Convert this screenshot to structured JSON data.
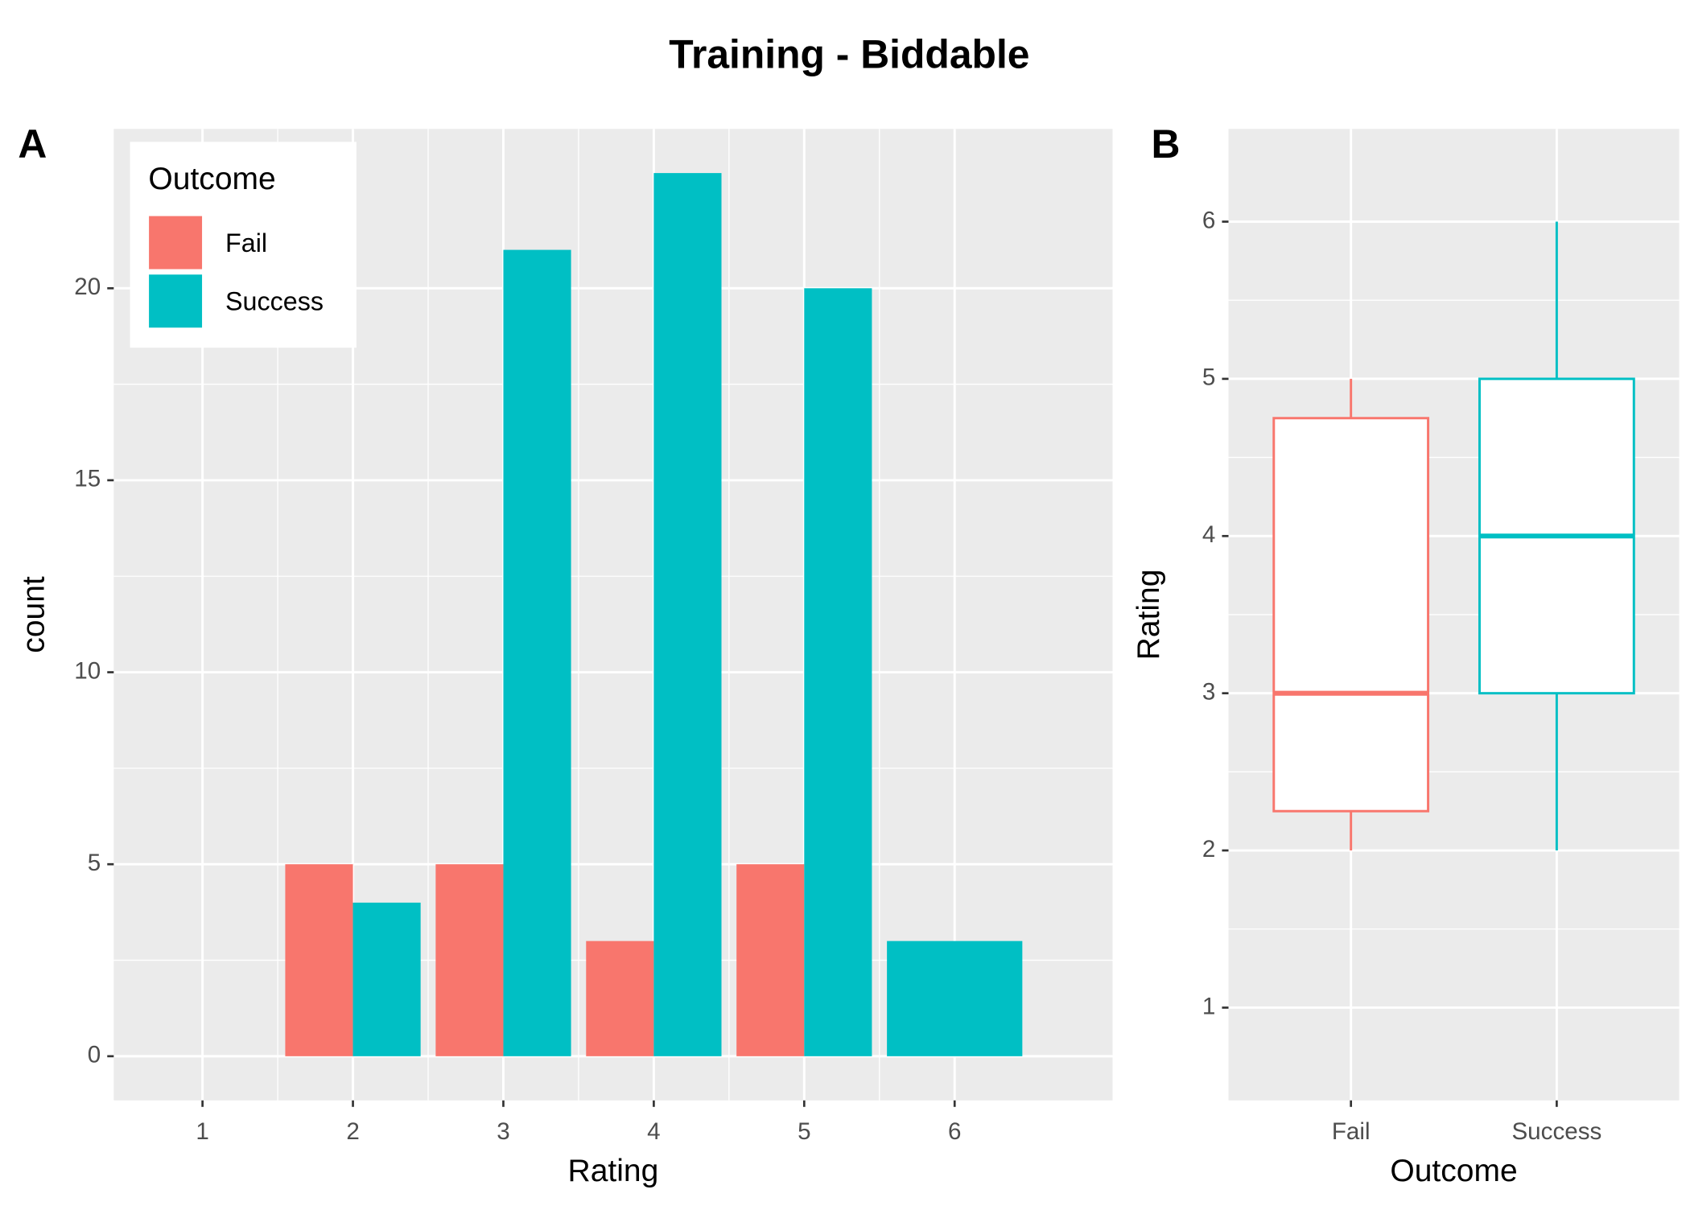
{
  "title": "Training - Biddable",
  "chart_data": [
    {
      "type": "bar",
      "tag": "A",
      "x_label": "Rating",
      "y_label": "count",
      "x": [
        1,
        2,
        3,
        4,
        5,
        6
      ],
      "series": [
        {
          "name": "Fail",
          "color": "#f8766d",
          "values": [
            null,
            5,
            5,
            3,
            5,
            null
          ]
        },
        {
          "name": "Success",
          "color": "#00bfc4",
          "values": [
            null,
            4,
            21,
            23,
            20,
            3
          ]
        }
      ],
      "xlim": [
        0.41,
        7.05
      ],
      "xticks": [
        1,
        2,
        3,
        4,
        5,
        6
      ],
      "ylim": [
        -1.15,
        24.15
      ],
      "yticks": [
        0,
        5,
        10,
        15,
        20
      ],
      "grid": true,
      "legend_title": "Outcome",
      "legend_position": "top-left"
    },
    {
      "type": "boxplot",
      "tag": "B",
      "x_label": "Outcome",
      "y_label": "Rating",
      "boxes": [
        {
          "name": "Fail",
          "color": "#f8766d",
          "min": 2,
          "q1": 2.25,
          "median": 3,
          "q3": 4.75,
          "max": 5
        },
        {
          "name": "Success",
          "color": "#00bfc4",
          "min": 2,
          "q1": 3,
          "median": 4,
          "q3": 5,
          "max": 6
        }
      ],
      "ylim": [
        0.41,
        6.59
      ],
      "yticks": [
        1,
        2,
        3,
        4,
        5,
        6
      ],
      "grid": true
    }
  ]
}
